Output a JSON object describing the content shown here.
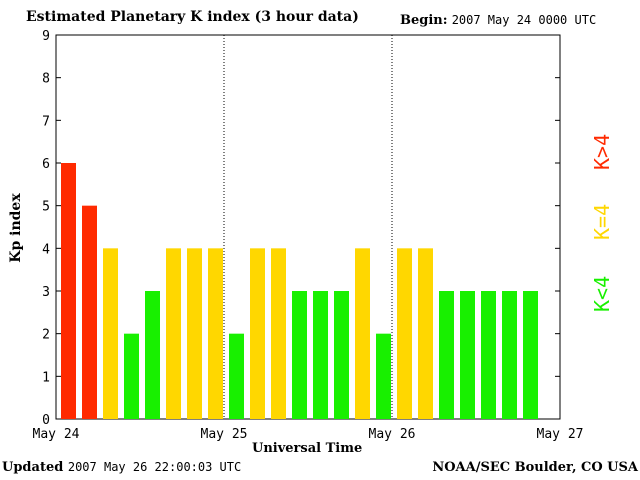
{
  "header": {
    "title": "Estimated Planetary K index (3 hour data)",
    "begin_label": "Begin:",
    "begin_value": "2007 May 24 0000 UTC"
  },
  "footer": {
    "updated_label": "Updated",
    "updated_value": "2007 May 26 22:00:03 UTC",
    "credit": "NOAA/SEC Boulder, CO USA"
  },
  "legend": {
    "high": "K>4",
    "mid": "K=4",
    "low": "K<4",
    "colors": {
      "high": "#ff2a00",
      "mid": "#ffd700",
      "low": "#18f000"
    }
  },
  "chart_data": {
    "type": "bar",
    "title": "Estimated Planetary K index (3 hour data)",
    "xlabel": "Universal Time",
    "ylabel": "Kp index",
    "ylim": [
      0,
      9
    ],
    "yticks": [
      0,
      1,
      2,
      3,
      4,
      5,
      6,
      7,
      8,
      9
    ],
    "xticks": [
      "May 24",
      "May 25",
      "May 26",
      "May 27"
    ],
    "bins_per_day": 8,
    "values": [
      6,
      5,
      4,
      2,
      3,
      4,
      4,
      4,
      2,
      4,
      4,
      3,
      3,
      3,
      4,
      2,
      4,
      4,
      3,
      3,
      3,
      3,
      3
    ],
    "day_separators": [
      "May 25",
      "May 26"
    ]
  }
}
